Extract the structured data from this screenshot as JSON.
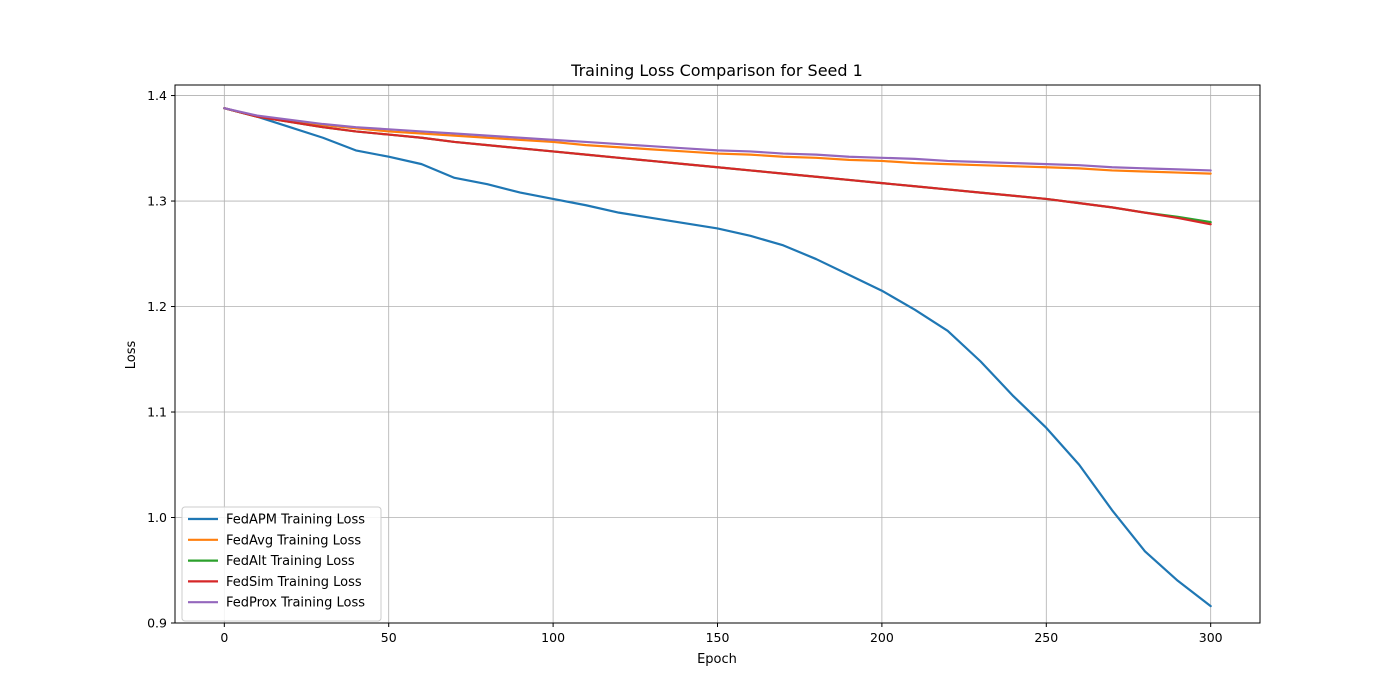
{
  "chart_data": {
    "type": "line",
    "title": "Training Loss Comparison for Seed 1",
    "xlabel": "Epoch",
    "ylabel": "Loss",
    "xlim": [
      -15,
      315
    ],
    "ylim": [
      0.9,
      1.41
    ],
    "xticks": [
      0,
      50,
      100,
      150,
      200,
      250,
      300
    ],
    "yticks": [
      0.9,
      1.0,
      1.1,
      1.2,
      1.3,
      1.4
    ],
    "ytick_labels": [
      "0.9",
      "1.0",
      "1.1",
      "1.2",
      "1.3",
      "1.4"
    ],
    "grid": true,
    "legend_position": "lower-left",
    "series": [
      {
        "name": "FedAPM Training Loss",
        "color": "#1f77b4",
        "x": [
          0,
          10,
          20,
          30,
          40,
          50,
          60,
          70,
          80,
          90,
          100,
          110,
          120,
          130,
          140,
          150,
          160,
          170,
          180,
          190,
          200,
          210,
          220,
          230,
          240,
          250,
          260,
          270,
          280,
          290,
          300
        ],
        "y": [
          1.388,
          1.38,
          1.37,
          1.36,
          1.348,
          1.342,
          1.335,
          1.322,
          1.316,
          1.308,
          1.302,
          1.296,
          1.289,
          1.284,
          1.279,
          1.274,
          1.267,
          1.258,
          1.245,
          1.23,
          1.215,
          1.197,
          1.177,
          1.148,
          1.115,
          1.085,
          1.05,
          1.007,
          0.968,
          0.94,
          0.916
        ]
      },
      {
        "name": "FedAvg Training Loss",
        "color": "#ff7f0e",
        "x": [
          0,
          10,
          20,
          30,
          40,
          50,
          60,
          70,
          80,
          90,
          100,
          110,
          120,
          130,
          140,
          150,
          160,
          170,
          180,
          190,
          200,
          210,
          220,
          230,
          240,
          250,
          260,
          270,
          280,
          290,
          300
        ],
        "y": [
          1.388,
          1.38,
          1.376,
          1.372,
          1.369,
          1.366,
          1.364,
          1.362,
          1.36,
          1.358,
          1.356,
          1.353,
          1.351,
          1.349,
          1.347,
          1.345,
          1.344,
          1.342,
          1.341,
          1.339,
          1.338,
          1.336,
          1.335,
          1.334,
          1.333,
          1.332,
          1.331,
          1.329,
          1.328,
          1.327,
          1.326
        ]
      },
      {
        "name": "FedAlt Training Loss",
        "color": "#2ca02c",
        "x": [
          0,
          10,
          20,
          30,
          40,
          50,
          60,
          70,
          80,
          90,
          100,
          110,
          120,
          130,
          140,
          150,
          160,
          170,
          180,
          190,
          200,
          210,
          220,
          230,
          240,
          250,
          260,
          270,
          280,
          290,
          300
        ],
        "y": [
          1.388,
          1.38,
          1.375,
          1.37,
          1.366,
          1.363,
          1.36,
          1.356,
          1.353,
          1.35,
          1.347,
          1.344,
          1.341,
          1.338,
          1.335,
          1.332,
          1.329,
          1.326,
          1.323,
          1.32,
          1.317,
          1.314,
          1.311,
          1.308,
          1.305,
          1.302,
          1.298,
          1.294,
          1.289,
          1.285,
          1.28
        ]
      },
      {
        "name": "FedSim Training Loss",
        "color": "#d62728",
        "x": [
          0,
          10,
          20,
          30,
          40,
          50,
          60,
          70,
          80,
          90,
          100,
          110,
          120,
          130,
          140,
          150,
          160,
          170,
          180,
          190,
          200,
          210,
          220,
          230,
          240,
          250,
          260,
          270,
          280,
          290,
          300
        ],
        "y": [
          1.388,
          1.38,
          1.375,
          1.37,
          1.366,
          1.363,
          1.36,
          1.356,
          1.353,
          1.35,
          1.347,
          1.344,
          1.341,
          1.338,
          1.335,
          1.332,
          1.329,
          1.326,
          1.323,
          1.32,
          1.317,
          1.314,
          1.311,
          1.308,
          1.305,
          1.302,
          1.298,
          1.294,
          1.289,
          1.284,
          1.278
        ]
      },
      {
        "name": "FedProx Training Loss",
        "color": "#9467bd",
        "x": [
          0,
          10,
          20,
          30,
          40,
          50,
          60,
          70,
          80,
          90,
          100,
          110,
          120,
          130,
          140,
          150,
          160,
          170,
          180,
          190,
          200,
          210,
          220,
          230,
          240,
          250,
          260,
          270,
          280,
          290,
          300
        ],
        "y": [
          1.388,
          1.381,
          1.377,
          1.373,
          1.37,
          1.368,
          1.366,
          1.364,
          1.362,
          1.36,
          1.358,
          1.356,
          1.354,
          1.352,
          1.35,
          1.348,
          1.347,
          1.345,
          1.344,
          1.342,
          1.341,
          1.34,
          1.338,
          1.337,
          1.336,
          1.335,
          1.334,
          1.332,
          1.331,
          1.33,
          1.329
        ]
      }
    ]
  }
}
